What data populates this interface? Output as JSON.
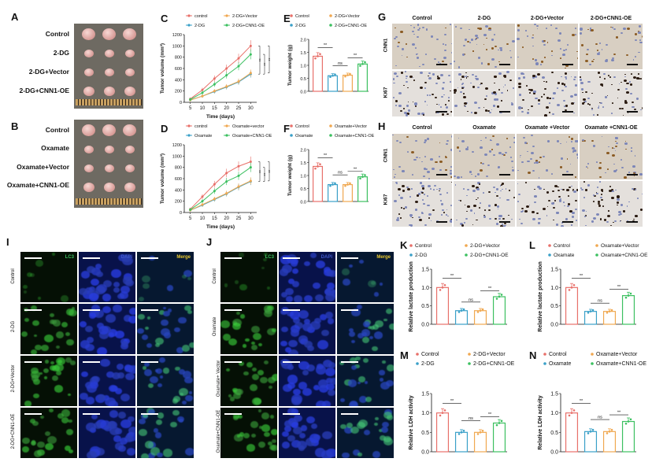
{
  "panels": {
    "A": {
      "letter": "A",
      "rows": [
        "Control",
        "2-DG",
        "2-DG+Vector",
        "2-DG+CNN1-OE"
      ]
    },
    "B": {
      "letter": "B",
      "rows": [
        "Control",
        "Oxamate",
        "Oxamate+Vector",
        "Oxamate+CNN1-OE"
      ]
    },
    "G": {
      "letter": "G",
      "cols": [
        "Control",
        "2-DG",
        "2-DG+Vector",
        "2-DG+CNN1-OE"
      ],
      "rows": [
        "CNN1",
        "Ki67"
      ]
    },
    "H": {
      "letter": "H",
      "cols": [
        "Control",
        "Oxamate",
        "Oxamate +Vector",
        "Oxamate +CNN1-OE"
      ],
      "rows": [
        "CNN1",
        "Ki67"
      ]
    },
    "I": {
      "letter": "I",
      "rows": [
        "Control",
        "2-DG",
        "2-DG+Vector",
        "2-DG+CNN1-OE"
      ],
      "cols": [
        "LC3",
        "DAPI",
        "Merge"
      ]
    },
    "J": {
      "letter": "J",
      "rows": [
        "Control",
        "Oxamate",
        "Oxamate+ Vector",
        "Oxamate+CNN1-OE"
      ],
      "cols": [
        "LC3",
        "DAPI",
        "Merge"
      ]
    }
  },
  "colors": {
    "control": "#e8706a",
    "dg": "#3aa0c8",
    "vector": "#f0a850",
    "oe": "#3cc060"
  },
  "chart_data": [
    {
      "id": "C",
      "type": "line",
      "letter": "C",
      "xlabel": "Time (days)",
      "ylabel": "Tumor volume (mm³)",
      "x": [
        5,
        10,
        15,
        20,
        25,
        30
      ],
      "ylim": [
        0,
        1200
      ],
      "yticks": [
        0,
        200,
        400,
        600,
        800,
        1000,
        1200
      ],
      "legend": [
        "control",
        "2-DG+Vector",
        "2-DG",
        "2-DG+CNN1-OE"
      ],
      "series": [
        {
          "name": "control",
          "values": [
            60,
            220,
            420,
            600,
            780,
            1000
          ]
        },
        {
          "name": "2-DG",
          "values": [
            40,
            110,
            190,
            270,
            360,
            500
          ]
        },
        {
          "name": "2-DG+Vector",
          "values": [
            40,
            110,
            200,
            280,
            370,
            520
          ]
        },
        {
          "name": "2-DG+CNN1-OE",
          "values": [
            50,
            170,
            320,
            480,
            640,
            850
          ]
        }
      ],
      "sig": [
        "**",
        "**",
        "**"
      ]
    },
    {
      "id": "D",
      "type": "line",
      "letter": "D",
      "xlabel": "Time (days)",
      "ylabel": "Tumor volume (mm³)",
      "x": [
        5,
        10,
        15,
        20,
        25,
        30
      ],
      "ylim": [
        0,
        1200
      ],
      "yticks": [
        0,
        200,
        400,
        600,
        800,
        1000,
        1200
      ],
      "legend": [
        "control",
        "Oxamate+vector",
        "Oxamate",
        "Oxamate+CNN1-OE"
      ],
      "series": [
        {
          "name": "control",
          "values": [
            60,
            280,
            500,
            700,
            820,
            900
          ]
        },
        {
          "name": "Oxamate",
          "values": [
            40,
            130,
            230,
            330,
            450,
            550
          ]
        },
        {
          "name": "Oxamate+vector",
          "values": [
            40,
            140,
            240,
            340,
            460,
            560
          ]
        },
        {
          "name": "Oxamate+CNN1-OE",
          "values": [
            50,
            200,
            380,
            550,
            650,
            800
          ]
        }
      ],
      "sig": [
        "**",
        "**",
        "**"
      ]
    },
    {
      "id": "E",
      "type": "bar",
      "letter": "E",
      "ylabel": "Tumor weight (g)",
      "ylim": [
        0,
        2.0
      ],
      "yticks": [
        0.0,
        0.5,
        1.0,
        1.5,
        2.0
      ],
      "legend": [
        "Control",
        "2-DG+Vector",
        "2-DG",
        "2-DG+CNN1-OE"
      ],
      "categories": [
        "Control",
        "2-DG",
        "2-DG+Vector",
        "2-DG+CNN1-OE"
      ],
      "values": [
        1.35,
        0.6,
        0.62,
        1.05
      ],
      "sig": [
        "**",
        "ns",
        "**"
      ]
    },
    {
      "id": "F",
      "type": "bar",
      "letter": "F",
      "ylabel": "Tumor weight (g)",
      "ylim": [
        0,
        2.0
      ],
      "yticks": [
        0.0,
        0.5,
        1.0,
        1.5,
        2.0
      ],
      "legend": [
        "Control",
        "Oxamate+Vector",
        "Oxamate",
        "Oxamate+CNN1-OE"
      ],
      "categories": [
        "Control",
        "Oxamate",
        "Oxamate+Vector",
        "Oxamate+CNN1-OE"
      ],
      "values": [
        1.35,
        0.65,
        0.65,
        0.95
      ],
      "sig": [
        "**",
        "ns",
        "**"
      ]
    },
    {
      "id": "K",
      "type": "bar",
      "letter": "K",
      "ylabel": "Relative lactate production",
      "ylim": [
        0,
        1.5
      ],
      "yticks": [
        0.0,
        0.5,
        1.0,
        1.5
      ],
      "legend": [
        "Control",
        "2-DG+Vector",
        "2-DG",
        "2-DG+CNN1-OE"
      ],
      "categories": [
        "Control",
        "2-DG",
        "2-DG+Vector",
        "2-DG+CNN1-OE"
      ],
      "values": [
        1.0,
        0.37,
        0.37,
        0.75
      ],
      "sig": [
        "**",
        "ns",
        "**"
      ]
    },
    {
      "id": "L",
      "type": "bar",
      "letter": "L",
      "ylabel": "Relative lactate production",
      "ylim": [
        0,
        1.5
      ],
      "yticks": [
        0.0,
        0.5,
        1.0,
        1.5
      ],
      "legend": [
        "Control",
        "Oxamate+Vector",
        "Oxamate",
        "Oxamate+CNN1-OE"
      ],
      "categories": [
        "Control",
        "Oxamate",
        "Oxamate+Vector",
        "Oxamate+CNN1-OE"
      ],
      "values": [
        1.0,
        0.35,
        0.35,
        0.78
      ],
      "sig": [
        "**",
        "ns",
        "**"
      ]
    },
    {
      "id": "M",
      "type": "bar",
      "letter": "M",
      "ylabel": "Relative LDH activity",
      "ylim": [
        0,
        1.5
      ],
      "yticks": [
        0.0,
        0.5,
        1.0,
        1.5
      ],
      "legend": [
        "Control",
        "2-DG+Vector",
        "2-DG",
        "2-DG+CNN1-OE"
      ],
      "categories": [
        "Control",
        "2-DG",
        "2-DG+Vector",
        "2-DG+CNN1-OE"
      ],
      "values": [
        1.0,
        0.5,
        0.5,
        0.74
      ],
      "sig": [
        "**",
        "ns",
        "**"
      ]
    },
    {
      "id": "N",
      "type": "bar",
      "letter": "N",
      "ylabel": "Relative LDH activity",
      "ylim": [
        0,
        1.5
      ],
      "yticks": [
        0.0,
        0.5,
        1.0,
        1.5
      ],
      "legend": [
        "Control",
        "Oxamate+Vector",
        "Oxamate",
        "Oxamate+CNN1-OE"
      ],
      "categories": [
        "Control",
        "Oxamate",
        "Oxamate+Vector",
        "Oxamate+CNN1-OE"
      ],
      "values": [
        1.0,
        0.52,
        0.52,
        0.78
      ],
      "sig": [
        "**",
        "ns",
        "**"
      ]
    }
  ]
}
